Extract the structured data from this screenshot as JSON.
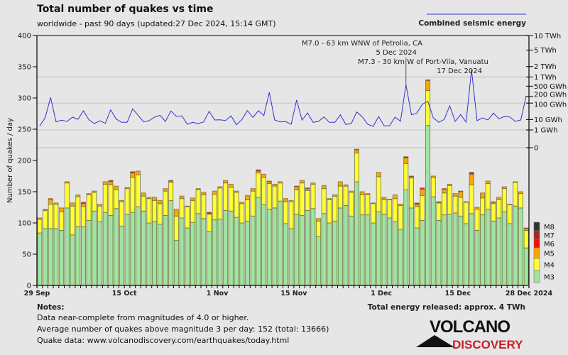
{
  "title": "Total number of quakes vs time",
  "subtitle": "worldwide - past 90 days (updated:27 Dec 2024, 15:14 GMT)",
  "energy_legend_label": "Combined seismic energy",
  "total_energy": "Total energy released: approx. 4 TWh",
  "notes": {
    "heading": "Notes:",
    "lines": [
      "Data near-complete from magnitudes of 4.0 or higher.",
      "Average number of quakes above magnitude 3 per day: 152 (total: 13666)",
      "Quake data: www.volcanodiscovery.com/earthquakes/today.html"
    ]
  },
  "logo": {
    "line1": "VOLCANO",
    "line2": "DISCOVERY"
  },
  "colors": {
    "background": "#e6e6e6",
    "M3": "#a0e4a0",
    "M4": "#ffff33",
    "M5": "#ffa500",
    "M6": "#ee1111",
    "M7": "#b02020",
    "M8": "#333333",
    "energy_line": "#3333cc"
  },
  "chart_data": {
    "type": "bar",
    "stacked": true,
    "ylabel": "Number of quakes / day",
    "ylim": [
      0,
      400
    ],
    "yticks": [
      0,
      50,
      100,
      150,
      200,
      250,
      300,
      350,
      400
    ],
    "xtick_labels": [
      {
        "label": "29 Sep",
        "date": "Sep 29"
      },
      {
        "label": "15 Oct",
        "date": "Oct 15"
      },
      {
        "label": "1 Nov",
        "date": "Nov 1"
      },
      {
        "label": "15 Nov",
        "date": "Nov 15"
      },
      {
        "label": "1 Dec",
        "date": "Dec 1"
      },
      {
        "label": "15 Dec",
        "date": "Dec 15"
      },
      {
        "label": "28 Dec 2024",
        "date": "Dec 28"
      }
    ],
    "categories": [
      "Sep 29",
      "Sep 30",
      "Oct 1",
      "Oct 2",
      "Oct 3",
      "Oct 4",
      "Oct 5",
      "Oct 6",
      "Oct 7",
      "Oct 8",
      "Oct 9",
      "Oct 10",
      "Oct 11",
      "Oct 12",
      "Oct 13",
      "Oct 14",
      "Oct 15",
      "Oct 16",
      "Oct 17",
      "Oct 18",
      "Oct 19",
      "Oct 20",
      "Oct 21",
      "Oct 22",
      "Oct 23",
      "Oct 24",
      "Oct 25",
      "Oct 26",
      "Oct 27",
      "Oct 28",
      "Oct 29",
      "Oct 30",
      "Oct 31",
      "Nov 1",
      "Nov 2",
      "Nov 3",
      "Nov 4",
      "Nov 5",
      "Nov 6",
      "Nov 7",
      "Nov 8",
      "Nov 9",
      "Nov 10",
      "Nov 11",
      "Nov 12",
      "Nov 13",
      "Nov 14",
      "Nov 15",
      "Nov 16",
      "Nov 17",
      "Nov 18",
      "Nov 19",
      "Nov 20",
      "Nov 21",
      "Nov 22",
      "Nov 23",
      "Nov 24",
      "Nov 25",
      "Nov 26",
      "Nov 27",
      "Nov 28",
      "Nov 29",
      "Nov 30",
      "Dec 1",
      "Dec 2",
      "Dec 3",
      "Dec 4",
      "Dec 5",
      "Dec 6",
      "Dec 7",
      "Dec 8",
      "Dec 9",
      "Dec 10",
      "Dec 11",
      "Dec 12",
      "Dec 13",
      "Dec 14",
      "Dec 15",
      "Dec 16",
      "Dec 17",
      "Dec 18",
      "Dec 19",
      "Dec 20",
      "Dec 21",
      "Dec 22",
      "Dec 23",
      "Dec 24",
      "Dec 25",
      "Dec 26",
      "Dec 27"
    ],
    "series": [
      {
        "name": "M3",
        "values": [
          84,
          91,
          91,
          91,
          88,
          124,
          81,
          94,
          94,
          104,
          119,
          102,
          117,
          112,
          123,
          95,
          114,
          117,
          126,
          119,
          100,
          102,
          98,
          112,
          136,
          72,
          108,
          92,
          101,
          115,
          107,
          86,
          105,
          106,
          120,
          119,
          109,
          100,
          103,
          111,
          141,
          129,
          122,
          124,
          135,
          99,
          91,
          114,
          112,
          120,
          123,
          78,
          115,
          100,
          103,
          124,
          128,
          111,
          166,
          113,
          113,
          100,
          118,
          114,
          108,
          102,
          90,
          153,
          124,
          92,
          104,
          256,
          142,
          104,
          113,
          114,
          116,
          111,
          99,
          115,
          88,
          113,
          122,
          103,
          108,
          118,
          99,
          127,
          124,
          60
        ]
      },
      {
        "name": "M4",
        "values": [
          22,
          29,
          39,
          39,
          30,
          40,
          46,
          48,
          32,
          41,
          30,
          25,
          45,
          49,
          30,
          39,
          41,
          56,
          51,
          24,
          39,
          34,
          33,
          39,
          29,
          39,
          31,
          34,
          35,
          38,
          38,
          28,
          41,
          50,
          44,
          38,
          40,
          31,
          34,
          40,
          39,
          44,
          41,
          35,
          29,
          35,
          43,
          39,
          52,
          32,
          39,
          25,
          40,
          37,
          40,
          35,
          31,
          38,
          46,
          32,
          32,
          31,
          56,
          23,
          29,
          37,
          38,
          42,
          48,
          34,
          40,
          56,
          31,
          28,
          35,
          46,
          27,
          30,
          34,
          46,
          34,
          27,
          41,
          28,
          29,
          37,
          30,
          38,
          23,
          28
        ]
      },
      {
        "name": "M5",
        "values": [
          2,
          2,
          8,
          2,
          6,
          2,
          5,
          3,
          5,
          2,
          2,
          3,
          4,
          5,
          6,
          2,
          2,
          7,
          6,
          5,
          2,
          5,
          5,
          4,
          2,
          11,
          4,
          1,
          4,
          2,
          4,
          1,
          5,
          2,
          4,
          5,
          2,
          2,
          7,
          4,
          3,
          5,
          3,
          3,
          2,
          5,
          2,
          5,
          4,
          3,
          2,
          4,
          5,
          2,
          2,
          7,
          2,
          2,
          5,
          5,
          2,
          1,
          7,
          4,
          1,
          6,
          2,
          9,
          2,
          4,
          10,
          16,
          2,
          1,
          6,
          2,
          4,
          9,
          1,
          17,
          3,
          8,
          4,
          2,
          4,
          3,
          1,
          1,
          3,
          3
        ]
      },
      {
        "name": "M6",
        "values": [
          0,
          0,
          1,
          0,
          0,
          0,
          0,
          0,
          2,
          0,
          0,
          0,
          0,
          2,
          0,
          0,
          0,
          2,
          0,
          0,
          0,
          0,
          0,
          0,
          1,
          0,
          0,
          0,
          0,
          0,
          0,
          2,
          0,
          0,
          0,
          0,
          0,
          0,
          0,
          0,
          2,
          0,
          1,
          0,
          0,
          0,
          0,
          1,
          0,
          1,
          0,
          0,
          0,
          0,
          0,
          0,
          0,
          0,
          1,
          0,
          0,
          0,
          0,
          0,
          0,
          0,
          0,
          2,
          1,
          2,
          2,
          1,
          0,
          1,
          1,
          0,
          0,
          1,
          0,
          3,
          0,
          0,
          0,
          1,
          0,
          0,
          0,
          0,
          0,
          1
        ]
      }
    ],
    "legend": [
      "M8",
      "M7",
      "M6",
      "M5",
      "M4",
      "M3"
    ],
    "legend_placement": "right-bottom",
    "energy_series": {
      "name": "Combined seismic energy",
      "unit": "GWh",
      "values": [
        2.8,
        13.4,
        181,
        6.45,
        8.9,
        7.1,
        15.1,
        10.5,
        38.9,
        9.6,
        4.65,
        8.1,
        4.86,
        44,
        10.9,
        5.9,
        5.9,
        50,
        20.4,
        6.45,
        8.1,
        15.1,
        20.4,
        7.1,
        37.8,
        17.5,
        18.3,
        4.0,
        5.9,
        4.65,
        6.45,
        36.4,
        9.2,
        9.6,
        8.4,
        18.3,
        3.6,
        10.1,
        40,
        14.5,
        38.9,
        19.5,
        296,
        9.2,
        6.45,
        6.8,
        4.0,
        141,
        8.9,
        28.9,
        5.9,
        7.1,
        15.6,
        5.9,
        5.9,
        21.8,
        3.8,
        4.65,
        33,
        16,
        4.0,
        2.5,
        16.3,
        2.9,
        2.9,
        15.1,
        7.4,
        562,
        21.8,
        28,
        88.6,
        121.6,
        13.4,
        5.9,
        10.1,
        73.2,
        7.1,
        22.7,
        6.2,
        1627,
        8.1,
        13.4,
        9.2,
        28,
        11.4,
        16.9,
        15.6,
        7.1,
        9.2,
        212
      ]
    },
    "energy_axis": {
      "scale": "power (E^0.2)",
      "ticks": [
        {
          "label": "10 TWh",
          "gwh": 10000
        },
        {
          "label": "5 TWh",
          "gwh": 5000
        },
        {
          "label": "2 TWh",
          "gwh": 2000
        },
        {
          "label": "1 TWh",
          "gwh": 1000
        },
        {
          "label": "500 GWh",
          "gwh": 500
        },
        {
          "label": "200 GWh",
          "gwh": 200
        },
        {
          "label": "100 GWh",
          "gwh": 100
        },
        {
          "label": "10 GWh",
          "gwh": 10
        },
        {
          "label": "1 GWh",
          "gwh": 1
        },
        {
          "label": "0",
          "gwh": 0
        }
      ],
      "gridlines_gwh": [
        1000,
        100,
        1,
        0
      ]
    },
    "annotations": [
      {
        "text": "M7.0 - 63 km WNW of Petrolia, CA",
        "date_text": "5 Dec 2024",
        "date": "Dec 5"
      },
      {
        "text": "M7.3 - 30 km W of Port-Vila, Vanuatu",
        "date_text": "17 Dec 2024",
        "date": "Dec 17"
      }
    ]
  }
}
